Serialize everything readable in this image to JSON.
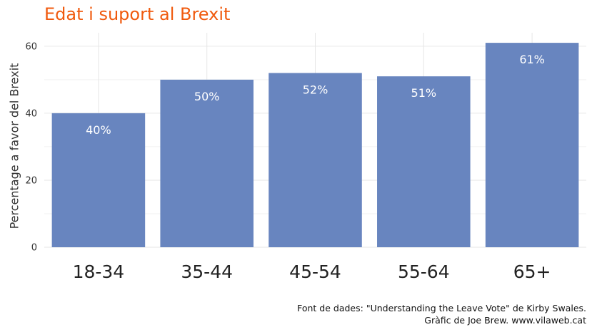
{
  "chart_data": {
    "type": "bar",
    "title": "Edat i suport al Brexit",
    "ylabel": "Percentage a favor del Brexit",
    "xlabel": "",
    "categories": [
      "18-34",
      "35-44",
      "45-54",
      "55-64",
      "65+"
    ],
    "values": [
      40,
      50,
      52,
      51,
      61
    ],
    "value_labels": [
      "40%",
      "50%",
      "52%",
      "51%",
      "61%"
    ],
    "ylim": [
      0,
      64
    ],
    "yticks": [
      0,
      20,
      40,
      60
    ],
    "grid": true,
    "bar_color": "#6885bf",
    "title_color": "#f05a0e",
    "label_color": "#ffffff"
  },
  "caption": {
    "line1": "Font de dades: \"Understanding the Leave Vote\" de Kirby Swales.",
    "line2": "Gràfic de Joe Brew. www.vilaweb.cat"
  }
}
